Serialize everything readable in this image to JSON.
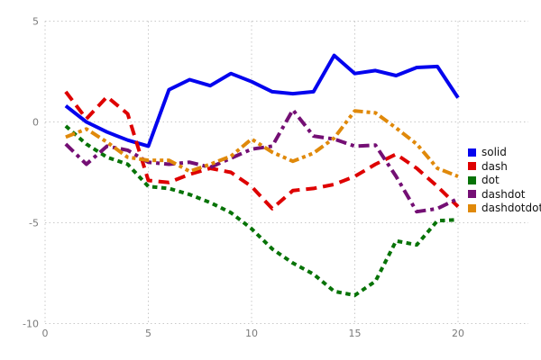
{
  "chart": {
    "background": "#ffffff",
    "grid_color": "#c9c9c9",
    "tick_label_color": "#7a7a7a",
    "x_tick_labels": [
      "0",
      "5",
      "10",
      "15",
      "20"
    ],
    "x_tick_values": [
      0,
      5,
      10,
      15,
      20
    ],
    "y_tick_labels": [
      "5",
      "0",
      "-5",
      "-10"
    ],
    "y_tick_values": [
      5,
      0,
      -5,
      -10
    ]
  },
  "chart_data": {
    "type": "line",
    "title": "",
    "xlabel": "",
    "ylabel": "",
    "xlim": [
      0,
      23.4
    ],
    "ylim": [
      -10,
      5
    ],
    "grid": true,
    "grid_style": "dotted",
    "legend_position": "right",
    "x": [
      1,
      2,
      3,
      4,
      5,
      6,
      7,
      8,
      9,
      10,
      11,
      12,
      13,
      14,
      15,
      16,
      17,
      18,
      19,
      20
    ],
    "series": [
      {
        "name": "solid",
        "color": "#0404ee",
        "line_style": "solid",
        "values": [
          0.8,
          0.0,
          -0.5,
          -0.9,
          -1.2,
          1.6,
          2.1,
          1.8,
          2.4,
          2.0,
          1.5,
          1.4,
          1.5,
          3.3,
          2.4,
          2.55,
          2.3,
          2.7,
          2.75,
          1.2
        ]
      },
      {
        "name": "dash",
        "color": "#de0000",
        "line_style": "dash",
        "values": [
          1.5,
          0.15,
          1.25,
          0.4,
          -2.9,
          -3.0,
          -2.6,
          -2.3,
          -2.5,
          -3.2,
          -4.3,
          -3.4,
          -3.3,
          -3.1,
          -2.7,
          -2.1,
          -1.6,
          -2.3,
          -3.2,
          -4.2
        ]
      },
      {
        "name": "dot",
        "color": "#077307",
        "line_style": "dot",
        "values": [
          -0.2,
          -1.1,
          -1.75,
          -2.1,
          -3.2,
          -3.3,
          -3.6,
          -4.0,
          -4.5,
          -5.3,
          -6.3,
          -7.0,
          -7.55,
          -8.4,
          -8.6,
          -7.9,
          -5.9,
          -6.1,
          -4.9,
          -4.85
        ]
      },
      {
        "name": "dashdot",
        "color": "#740f74",
        "line_style": "dashdot",
        "values": [
          -1.1,
          -2.1,
          -1.2,
          -1.4,
          -2.0,
          -2.1,
          -2.0,
          -2.25,
          -1.8,
          -1.35,
          -1.2,
          0.6,
          -0.7,
          -0.85,
          -1.2,
          -1.15,
          -2.7,
          -4.45,
          -4.3,
          -3.8
        ]
      },
      {
        "name": "dashdotdot",
        "color": "#e0890a",
        "line_style": "dashdotdot",
        "values": [
          -0.75,
          -0.35,
          -1.0,
          -1.75,
          -1.9,
          -1.9,
          -2.45,
          -2.1,
          -1.7,
          -0.85,
          -1.5,
          -1.95,
          -1.55,
          -0.8,
          0.55,
          0.45,
          -0.3,
          -1.1,
          -2.3,
          -2.7
        ]
      }
    ]
  }
}
